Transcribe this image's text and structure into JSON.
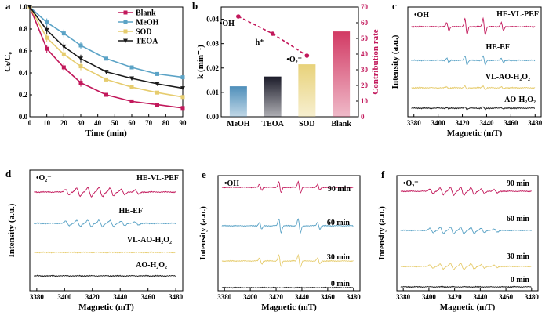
{
  "colors": {
    "blank": "#c2185b",
    "meoh": "#5ba3c6",
    "sod": "#e6cc6e",
    "teoa": "#1a1a1a",
    "bar_meoh": "#4f8fba",
    "bar_teoa": "#1c1c2a",
    "bar_sod": "#e8d27a",
    "bar_blank": "#d23a64",
    "contribution": "#c2185b"
  },
  "chart_data": [
    {
      "id": "a",
      "panel_label": "a",
      "type": "line",
      "xlabel": "Time (min)",
      "ylabel": "Cₜ/C₀",
      "xlim": [
        0,
        90
      ],
      "ylim": [
        0,
        1.0
      ],
      "x_ticks": [
        "0",
        "10",
        "20",
        "30",
        "40",
        "50",
        "60",
        "70",
        "80",
        "90"
      ],
      "y_ticks": [
        "0.0",
        "0.2",
        "0.4",
        "0.6",
        "0.8",
        "1.0"
      ],
      "legend_position": "top-right",
      "x": [
        0,
        10,
        20,
        30,
        45,
        60,
        75,
        90
      ],
      "series": [
        {
          "name": "Blank",
          "key": "blank",
          "values": [
            1.0,
            0.62,
            0.45,
            0.31,
            0.2,
            0.14,
            0.11,
            0.08
          ]
        },
        {
          "name": "MeOH",
          "key": "meoh",
          "values": [
            1.0,
            0.86,
            0.76,
            0.65,
            0.53,
            0.45,
            0.39,
            0.36
          ]
        },
        {
          "name": "SOD",
          "key": "sod",
          "values": [
            1.0,
            0.72,
            0.57,
            0.46,
            0.34,
            0.27,
            0.22,
            0.18
          ]
        },
        {
          "name": "TEOA",
          "key": "teoa",
          "values": [
            1.0,
            0.79,
            0.64,
            0.53,
            0.41,
            0.35,
            0.3,
            0.26
          ]
        }
      ]
    },
    {
      "id": "b",
      "panel_label": "b",
      "type": "bar",
      "xlabel": "",
      "ylabel": "k (min⁻¹)",
      "ylabel_right": "Contribution rate",
      "ylim": [
        0,
        0.045
      ],
      "ylim_right": [
        0,
        70
      ],
      "y_ticks": [
        "0.00",
        "0.01",
        "0.02",
        "0.03",
        "0.04"
      ],
      "y_ticks_right": [
        "0",
        "10",
        "20",
        "30",
        "40",
        "50",
        "60",
        "70"
      ],
      "categories": [
        "MeOH",
        "TEOA",
        "SOD",
        "Blank"
      ],
      "values": [
        0.0125,
        0.0165,
        0.0215,
        0.035
      ],
      "contribution": {
        "labels": [
          "•OH",
          "h⁺",
          "•O₂⁻"
        ],
        "values": [
          64,
          53,
          39
        ]
      }
    },
    {
      "id": "c",
      "panel_label": "c",
      "type": "line",
      "subtitle": "•OH",
      "xlabel": "Magnetic (mT)",
      "ylabel": "Intensity (a.u.)",
      "xlim": [
        3375,
        3485
      ],
      "x_ticks": [
        "3380",
        "3400",
        "3420",
        "3440",
        "3460",
        "3480"
      ],
      "traces": [
        {
          "label": "HE-VL-PEF",
          "key": "blank",
          "amplitude": 1.0
        },
        {
          "label": "HE-EF",
          "key": "meoh",
          "amplitude": 0.55
        },
        {
          "label": "VL-AO-H₂O₂",
          "key": "sod",
          "amplitude": 0.22
        },
        {
          "label": "AO-H₂O₂",
          "key": "teoa",
          "amplitude": 0.16
        }
      ]
    },
    {
      "id": "d",
      "panel_label": "d",
      "type": "line",
      "subtitle": "•O₂⁻",
      "xlabel": "Magnetic (mT)",
      "ylabel": "Intensity (a.u.)",
      "xlim": [
        3375,
        3485
      ],
      "x_ticks": [
        "3380",
        "3400",
        "3420",
        "3440",
        "3460",
        "3480"
      ],
      "traces": [
        {
          "label": "HE-VL-PEF",
          "key": "blank",
          "amplitude": 1.0
        },
        {
          "label": "HE-EF",
          "key": "meoh",
          "amplitude": 0.75
        },
        {
          "label": "VL-AO-H₂O₂",
          "key": "sod",
          "amplitude": 0.0
        },
        {
          "label": "AO-H₂O₂",
          "key": "teoa",
          "amplitude": 0.0
        }
      ]
    },
    {
      "id": "e",
      "panel_label": "e",
      "type": "line",
      "subtitle": "•OH",
      "xlabel": "Magnetic (mT)",
      "ylabel": "Intensity (a.u.)",
      "xlim": [
        3375,
        3485
      ],
      "x_ticks": [
        "3380",
        "3400",
        "3420",
        "3440",
        "3460",
        "3480"
      ],
      "traces": [
        {
          "label": "90 min",
          "key": "blank",
          "amplitude": 0.8
        },
        {
          "label": "60 min",
          "key": "meoh",
          "amplitude": 1.0
        },
        {
          "label": "30 min",
          "key": "sod",
          "amplitude": 0.85
        },
        {
          "label": "0 min",
          "key": "teoa",
          "amplitude": 0.0
        }
      ]
    },
    {
      "id": "f",
      "panel_label": "f",
      "type": "line",
      "subtitle": "•O₂⁻",
      "xlabel": "Magnetic (mT)",
      "ylabel": "Intensity (a.u.)",
      "xlim": [
        3375,
        3485
      ],
      "x_ticks": [
        "3380",
        "3400",
        "3420",
        "3440",
        "3460",
        "3480"
      ],
      "traces": [
        {
          "label": "90 min",
          "key": "blank",
          "amplitude": 1.0
        },
        {
          "label": "60 min",
          "key": "meoh",
          "amplitude": 0.9
        },
        {
          "label": "30 min",
          "key": "sod",
          "amplitude": 0.75
        },
        {
          "label": "0 min",
          "key": "teoa",
          "amplitude": 0.0
        }
      ]
    }
  ]
}
